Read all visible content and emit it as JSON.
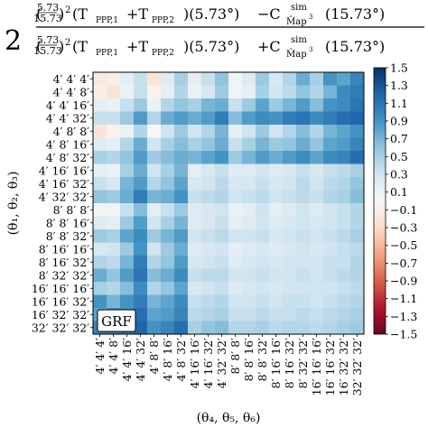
{
  "chart_data": {
    "type": "heatmap",
    "title": {
      "factor": "2",
      "num_frac_top": "5.73",
      "num_frac_bottom": "15.73",
      "num_sq": "2",
      "num_T": "(T",
      "T_sub1": "PPP,1",
      "plus": "+T",
      "T_sub2": "PPP,2",
      "num_angle": ")(5.73°)",
      "minus": "−C",
      "C_sup": "sim",
      "C_sub": "M̂ap",
      "C_sub_sup": "3",
      "C_arg": "(15.73°)",
      "den_plus": "+C"
    },
    "ylabel": "(θ₁, θ₂, θ₃)",
    "xlabel": "(θ₄, θ₅, θ₆)",
    "labels": [
      "4′ 4′ 4′",
      "4′ 4′ 8′",
      "4′ 4′ 16′",
      "4′ 4′ 32′",
      "4′ 8′ 8′",
      "4′ 8′ 16′",
      "4′ 8′ 32′",
      "4′ 16′ 16′",
      "4′ 16′ 32′",
      "4′ 32′ 32′",
      "8′ 8′ 8′",
      "8′ 8′ 16′",
      "8′ 8′ 32′",
      "8′ 16′ 16′",
      "8′ 16′ 32′",
      "8′ 32′ 32′",
      "16′ 16′ 16′",
      "16′ 16′ 32′",
      "16′ 32′ 32′",
      "32′ 32′ 32′"
    ],
    "colorbar": {
      "range": [
        -1.5,
        1.5
      ],
      "ticks": [
        "1.5",
        "1.3",
        "1.1",
        "0.9",
        "0.7",
        "0.5",
        "0.3",
        "0.1",
        "−0.1",
        "−0.3",
        "−0.5",
        "−0.7",
        "−0.9",
        "−1.1",
        "−1.3",
        "−1.5"
      ],
      "tick_values": [
        1.5,
        1.3,
        1.1,
        0.9,
        0.7,
        0.5,
        0.3,
        0.1,
        -0.1,
        -0.3,
        -0.5,
        -0.7,
        -0.9,
        -1.1,
        -1.3,
        -1.5
      ],
      "cmap": "RdBu"
    },
    "annotation": "GRF",
    "values": [
      [
        -0.15,
        -0.1,
        0.15,
        0.35,
        -0.2,
        0.2,
        0.5,
        0.15,
        0.35,
        0.6,
        0.05,
        0.2,
        0.55,
        0.25,
        0.45,
        0.75,
        0.5,
        0.9,
        0.8,
        1.0
      ],
      [
        -0.1,
        -0.2,
        0.1,
        0.35,
        -0.05,
        0.15,
        0.45,
        0.1,
        0.25,
        0.55,
        0.05,
        0.15,
        0.5,
        0.3,
        0.4,
        0.6,
        0.45,
        0.7,
        0.95,
        1.05
      ],
      [
        0.15,
        0.1,
        0.35,
        0.55,
        0.1,
        0.45,
        0.6,
        0.5,
        0.7,
        0.75,
        0.35,
        0.55,
        0.8,
        0.55,
        0.7,
        0.85,
        0.65,
        0.9,
        0.95,
        1.1
      ],
      [
        0.35,
        0.35,
        0.55,
        0.85,
        0.45,
        0.75,
        0.85,
        0.75,
        0.85,
        1.05,
        0.65,
        0.85,
        0.95,
        0.9,
        1.05,
        1.1,
        0.95,
        1.05,
        1.15,
        1.2
      ],
      [
        -0.2,
        -0.05,
        0.1,
        0.45,
        0.0,
        0.3,
        0.55,
        0.3,
        0.45,
        0.7,
        0.15,
        0.3,
        0.55,
        0.3,
        0.45,
        0.65,
        0.45,
        0.7,
        0.8,
        0.9
      ],
      [
        0.2,
        0.15,
        0.45,
        0.75,
        0.3,
        0.5,
        0.65,
        0.5,
        0.6,
        0.75,
        0.35,
        0.5,
        0.7,
        0.55,
        0.6,
        0.75,
        0.6,
        0.8,
        0.85,
        1.0
      ],
      [
        0.5,
        0.45,
        0.6,
        0.85,
        0.55,
        0.65,
        0.75,
        0.7,
        0.8,
        0.9,
        0.55,
        0.7,
        0.85,
        0.75,
        0.85,
        0.95,
        0.8,
        0.95,
        1.0,
        1.15
      ],
      [
        0.15,
        0.1,
        0.5,
        0.75,
        0.3,
        0.5,
        0.7,
        0.15,
        0.25,
        0.35,
        0.2,
        0.2,
        0.3,
        0.2,
        0.25,
        0.35,
        0.25,
        0.35,
        0.4,
        0.5
      ],
      [
        0.35,
        0.25,
        0.7,
        0.85,
        0.45,
        0.6,
        0.8,
        0.25,
        0.3,
        0.4,
        0.25,
        0.25,
        0.35,
        0.25,
        0.3,
        0.4,
        0.3,
        0.4,
        0.45,
        0.6
      ],
      [
        0.6,
        0.55,
        0.75,
        1.05,
        0.7,
        0.75,
        0.9,
        0.35,
        0.4,
        0.45,
        0.3,
        0.35,
        0.4,
        0.3,
        0.35,
        0.4,
        0.35,
        0.45,
        0.5,
        0.65
      ],
      [
        0.05,
        0.05,
        0.35,
        0.65,
        0.15,
        0.35,
        0.55,
        0.2,
        0.25,
        0.3,
        0.1,
        0.15,
        0.3,
        0.15,
        0.2,
        0.3,
        0.2,
        0.3,
        0.35,
        0.45
      ],
      [
        0.2,
        0.15,
        0.55,
        0.85,
        0.3,
        0.5,
        0.7,
        0.2,
        0.25,
        0.35,
        0.15,
        0.2,
        0.3,
        0.2,
        0.25,
        0.3,
        0.25,
        0.3,
        0.35,
        0.45
      ],
      [
        0.55,
        0.5,
        0.8,
        0.95,
        0.55,
        0.7,
        0.85,
        0.3,
        0.35,
        0.4,
        0.3,
        0.3,
        0.35,
        0.25,
        0.3,
        0.35,
        0.3,
        0.35,
        0.4,
        0.5
      ],
      [
        0.25,
        0.3,
        0.55,
        0.9,
        0.3,
        0.55,
        0.75,
        0.2,
        0.25,
        0.3,
        0.15,
        0.2,
        0.25,
        0.2,
        0.25,
        0.3,
        0.25,
        0.3,
        0.35,
        0.4
      ],
      [
        0.45,
        0.4,
        0.7,
        1.05,
        0.45,
        0.6,
        0.85,
        0.25,
        0.3,
        0.35,
        0.2,
        0.25,
        0.3,
        0.25,
        0.3,
        0.3,
        0.3,
        0.35,
        0.35,
        0.45
      ],
      [
        0.75,
        0.6,
        0.85,
        1.1,
        0.65,
        0.75,
        0.95,
        0.35,
        0.4,
        0.4,
        0.3,
        0.3,
        0.35,
        0.3,
        0.3,
        0.35,
        0.3,
        0.35,
        0.4,
        0.45
      ],
      [
        0.5,
        0.45,
        0.65,
        0.95,
        0.45,
        0.6,
        0.8,
        0.25,
        0.3,
        0.35,
        0.2,
        0.25,
        0.3,
        0.25,
        0.3,
        0.3,
        0.3,
        0.3,
        0.35,
        0.4
      ],
      [
        0.9,
        0.7,
        0.9,
        1.05,
        0.7,
        0.8,
        0.95,
        0.35,
        0.4,
        0.45,
        0.3,
        0.3,
        0.35,
        0.3,
        0.35,
        0.35,
        0.3,
        0.35,
        0.4,
        0.45
      ],
      [
        0.8,
        0.95,
        0.95,
        1.15,
        0.8,
        0.85,
        1.0,
        0.4,
        0.45,
        0.5,
        0.35,
        0.35,
        0.4,
        0.35,
        0.35,
        0.4,
        0.35,
        0.4,
        0.45,
        0.5
      ],
      [
        1.0,
        1.05,
        1.1,
        1.2,
        0.9,
        1.0,
        1.15,
        0.5,
        0.6,
        0.65,
        0.45,
        0.45,
        0.5,
        0.4,
        0.45,
        0.45,
        0.4,
        0.45,
        0.5,
        0.55
      ]
    ]
  }
}
